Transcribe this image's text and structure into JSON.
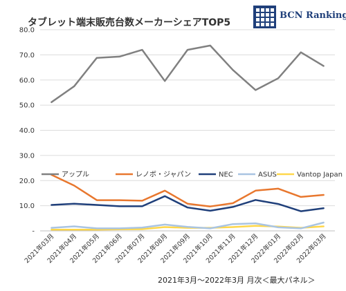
{
  "brand": {
    "name": "BCN Ranking",
    "color": "#1f3f7a"
  },
  "footer": "2021年3月～2022年3月 月次＜最大パネル＞",
  "chart_data": {
    "type": "line",
    "title": "タブレット端末販売台数メーカーシェアTOP5",
    "xlabel": "",
    "ylabel": "",
    "ylim": [
      0,
      80
    ],
    "yticks": [
      "80.0",
      "70.0",
      "60.0",
      "50.0",
      "40.0",
      "30.0",
      "20.0",
      "10.0",
      "-"
    ],
    "grid": "horizontal",
    "legend_position": "lower-middle",
    "categories": [
      "2021年03月",
      "2021年04月",
      "2021年05月",
      "2021年06月",
      "2021年07月",
      "2021年08月",
      "2021年09月",
      "2021年10月",
      "2021年11月",
      "2021年12月",
      "2022年01月",
      "2022年02月",
      "2022年03月"
    ],
    "series": [
      {
        "name": "アップル",
        "color": "#808080",
        "values": [
          51.2,
          57.5,
          68.8,
          69.3,
          72.0,
          59.6,
          72.0,
          73.7,
          64.0,
          56.0,
          60.7,
          71.0,
          65.6
        ]
      },
      {
        "name": "レノボ・ジャパン",
        "color": "#e8772e",
        "values": [
          22.3,
          18.0,
          12.2,
          12.2,
          12.0,
          16.0,
          10.8,
          9.7,
          11.0,
          16.0,
          16.8,
          13.5,
          14.3
        ]
      },
      {
        "name": "NEC",
        "color": "#1f3f7a",
        "values": [
          10.3,
          10.8,
          10.3,
          9.8,
          9.8,
          13.8,
          9.3,
          8.0,
          9.5,
          12.3,
          10.7,
          7.8,
          9.0
        ]
      },
      {
        "name": "ASUS",
        "color": "#a9c4e2",
        "values": [
          1.2,
          1.8,
          1.0,
          1.0,
          1.3,
          2.5,
          1.6,
          1.0,
          2.7,
          3.0,
          1.4,
          1.0,
          3.3
        ]
      },
      {
        "name": "Vantop Japan",
        "color": "#ffd74a",
        "values": [
          0.5,
          0.5,
          0.5,
          0.6,
          0.7,
          1.5,
          1.2,
          1.2,
          1.5,
          2.0,
          1.7,
          1.2,
          1.8
        ]
      }
    ]
  }
}
